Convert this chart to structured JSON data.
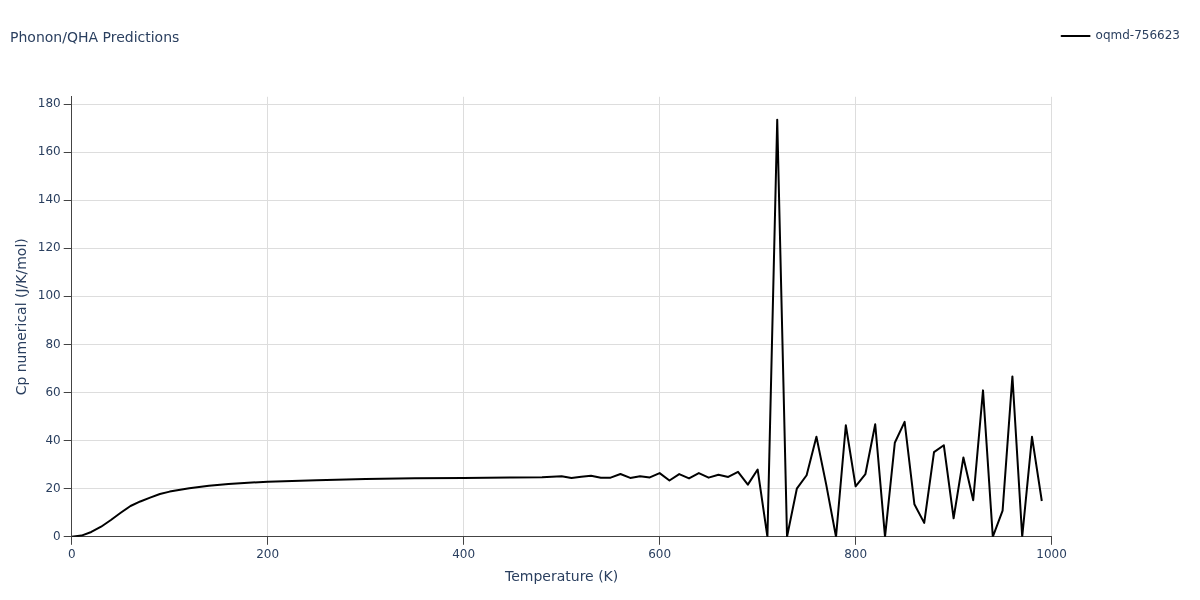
{
  "chart_data": {
    "type": "line",
    "title": "Phonon/QHA Predictions",
    "xlabel": "Temperature (K)",
    "ylabel": "Cp numerical (J/K/mol)",
    "xlim": [
      0,
      1000
    ],
    "xticks": [
      0,
      200,
      400,
      600,
      800,
      1000
    ],
    "ylim": [
      0,
      183
    ],
    "yticks": [
      0,
      20,
      40,
      60,
      80,
      100,
      120,
      140,
      160,
      180
    ],
    "grid": true,
    "legend": "top right",
    "marker": "none",
    "line_style": "solid",
    "x": [
      0,
      10,
      20,
      30,
      40,
      50,
      60,
      70,
      80,
      90,
      100,
      120,
      140,
      160,
      180,
      200,
      250,
      300,
      350,
      400,
      450,
      480,
      490,
      500,
      510,
      520,
      530,
      540,
      550,
      560,
      570,
      580,
      590,
      600,
      610,
      620,
      630,
      640,
      650,
      660,
      670,
      680,
      690,
      700,
      710,
      720,
      730,
      740,
      750,
      760,
      770,
      780,
      790,
      800,
      810,
      820,
      830,
      840,
      850,
      860,
      870,
      880,
      890,
      900,
      910,
      920,
      930,
      940,
      950,
      960,
      970,
      980,
      990
    ],
    "series": [
      {
        "name": "oqmd-756623",
        "color": "#000000",
        "values": [
          0,
          0.5,
          2,
          4.2,
          7,
          10,
          12.8,
          14.7,
          16.3,
          17.8,
          18.8,
          20.2,
          21.2,
          22,
          22.5,
          22.9,
          23.5,
          24,
          24.3,
          24.5,
          24.7,
          24.8,
          25,
          25.2,
          24.5,
          25,
          25.4,
          24.6,
          24.6,
          26.1,
          24.5,
          25.2,
          24.7,
          26.5,
          23.4,
          26.1,
          24.3,
          26.5,
          24.6,
          25.8,
          24.9,
          27,
          21.7,
          28,
          0,
          173.5,
          0,
          20,
          25.6,
          41.6,
          21.7,
          0,
          46.4,
          21,
          26.1,
          46.8,
          0,
          39.1,
          47.8,
          13.5,
          5.8,
          35.2,
          38.1,
          7.7,
          33,
          15.2,
          60.9,
          0,
          10.9,
          66.7,
          0,
          41.6,
          14.9
        ]
      }
    ]
  }
}
